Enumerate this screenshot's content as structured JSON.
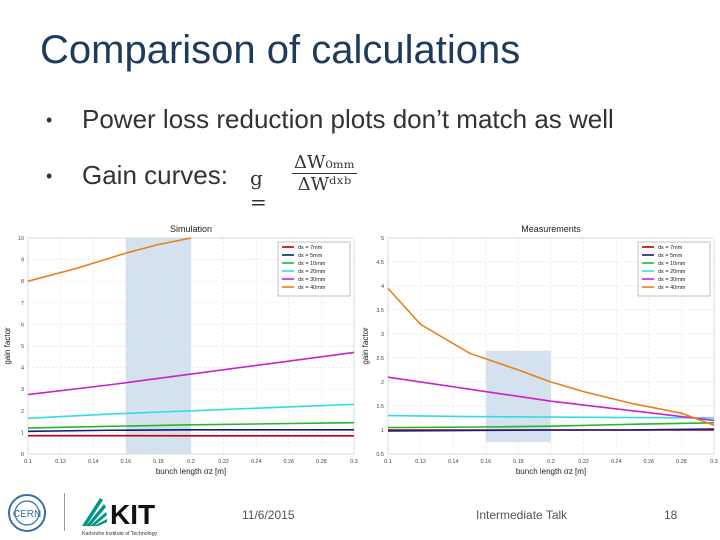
{
  "slide": {
    "title": "Comparison of calculations",
    "bullets": [
      "Power loss reduction plots don’t match as well",
      "Gain curves:"
    ],
    "formula": {
      "lhs": "g =",
      "numerator": "ΔW₀ₘₘ",
      "denominator": "ΔWᵈˣᵇ"
    },
    "footer": {
      "date": "11/6/2015",
      "talk": "Intermediate Talk",
      "page": "18",
      "kit_caption": "Karlsruhe Institute of Technology"
    }
  },
  "chart_data": [
    {
      "type": "line",
      "title": "Simulation",
      "xlabel": "bunch length σz [m]",
      "ylabel": "gain factor",
      "xlim": [
        0.1,
        0.3
      ],
      "ylim": [
        0,
        10
      ],
      "xticks": [
        "0.1",
        "0.12",
        "0.14",
        "0.16",
        "0.18",
        "0.2",
        "0.22",
        "0.24",
        "0.26",
        "0.28",
        "0.3"
      ],
      "yticks": [
        "0",
        "1",
        "2",
        "3",
        "4",
        "5",
        "6",
        "7",
        "8",
        "9",
        "10"
      ],
      "xtick_values": [
        0.1,
        0.12,
        0.14,
        0.16,
        0.18,
        0.2,
        0.22,
        0.24,
        0.26,
        0.28,
        0.3
      ],
      "ytick_values": [
        0,
        1,
        2,
        3,
        4,
        5,
        6,
        7,
        8,
        9,
        10
      ],
      "shaded_region": [
        0.16,
        0.2
      ],
      "legend_position": "top-right",
      "grid": true,
      "series": [
        {
          "name": "dx =   7mm",
          "color": "#c00000",
          "x": [
            0.1,
            0.15,
            0.2,
            0.25,
            0.3
          ],
          "y": [
            0.85,
            0.85,
            0.84,
            0.84,
            0.84
          ]
        },
        {
          "name": "dx =   5mm",
          "color": "#1a1a80",
          "x": [
            0.1,
            0.15,
            0.2,
            0.25,
            0.3
          ],
          "y": [
            1.05,
            1.1,
            1.12,
            1.12,
            1.12
          ]
        },
        {
          "name": "dx = 10mm",
          "color": "#22bb22",
          "x": [
            0.1,
            0.15,
            0.2,
            0.25,
            0.3
          ],
          "y": [
            1.2,
            1.28,
            1.35,
            1.4,
            1.45
          ]
        },
        {
          "name": "dx = 20mm",
          "color": "#33dddd",
          "x": [
            0.1,
            0.15,
            0.2,
            0.25,
            0.3
          ],
          "y": [
            1.65,
            1.85,
            2.0,
            2.15,
            2.3
          ]
        },
        {
          "name": "dx = 30mm",
          "color": "#cc22cc",
          "x": [
            0.1,
            0.15,
            0.2,
            0.25,
            0.3
          ],
          "y": [
            2.75,
            3.2,
            3.7,
            4.2,
            4.7
          ]
        },
        {
          "name": "dx = 40mm",
          "color": "#e8801a",
          "x": [
            0.1,
            0.13,
            0.16,
            0.18,
            0.2
          ],
          "y": [
            8.0,
            8.6,
            9.3,
            9.7,
            10.0
          ]
        }
      ]
    },
    {
      "type": "line",
      "title": "Measurements",
      "xlabel": "bunch length σz [m]",
      "ylabel": "gain factor",
      "xlim": [
        0.1,
        0.3
      ],
      "ylim": [
        0.5,
        5
      ],
      "xticks": [
        "0.1",
        "0.12",
        "0.14",
        "0.16",
        "0.18",
        "0.2",
        "0.22",
        "0.24",
        "0.26",
        "0.28",
        "0.3"
      ],
      "yticks": [
        "0.5",
        "1",
        "1.5",
        "2",
        "2.5",
        "3",
        "3.5",
        "4",
        "4.5",
        "5"
      ],
      "xtick_values": [
        0.1,
        0.12,
        0.14,
        0.16,
        0.18,
        0.2,
        0.22,
        0.24,
        0.26,
        0.28,
        0.3
      ],
      "ytick_values": [
        0.5,
        1,
        1.5,
        2,
        2.5,
        3,
        3.5,
        4,
        4.5,
        5
      ],
      "shaded_region": [
        0.16,
        0.2
      ],
      "shaded_ylim": [
        0.75,
        2.65
      ],
      "legend_position": "top-right",
      "grid": true,
      "series": [
        {
          "name": "dx =   7mm",
          "color": "#c00000",
          "x": [
            0.1,
            0.15,
            0.2,
            0.25,
            0.3
          ],
          "y": [
            1.0,
            1.0,
            1.0,
            1.0,
            1.0
          ]
        },
        {
          "name": "dx =   5mm",
          "color": "#1a1a80",
          "x": [
            0.1,
            0.15,
            0.2,
            0.25,
            0.3
          ],
          "y": [
            0.98,
            0.99,
            1.0,
            1.0,
            1.02
          ]
        },
        {
          "name": "dx = 10mm",
          "color": "#22bb22",
          "x": [
            0.1,
            0.15,
            0.2,
            0.25,
            0.3
          ],
          "y": [
            1.05,
            1.06,
            1.08,
            1.12,
            1.15
          ]
        },
        {
          "name": "dx = 20mm",
          "color": "#33dddd",
          "x": [
            0.1,
            0.15,
            0.2,
            0.25,
            0.3
          ],
          "y": [
            1.3,
            1.28,
            1.27,
            1.26,
            1.25
          ]
        },
        {
          "name": "dx = 30mm",
          "color": "#cc22cc",
          "x": [
            0.1,
            0.15,
            0.2,
            0.25,
            0.3
          ],
          "y": [
            2.1,
            1.85,
            1.6,
            1.4,
            1.2
          ]
        },
        {
          "name": "dx = 40mm",
          "color": "#e8801a",
          "x": [
            0.1,
            0.12,
            0.15,
            0.18,
            0.2,
            0.22,
            0.25,
            0.28,
            0.3
          ],
          "y": [
            3.95,
            3.2,
            2.6,
            2.25,
            2.0,
            1.8,
            1.55,
            1.35,
            1.1
          ]
        }
      ]
    }
  ]
}
